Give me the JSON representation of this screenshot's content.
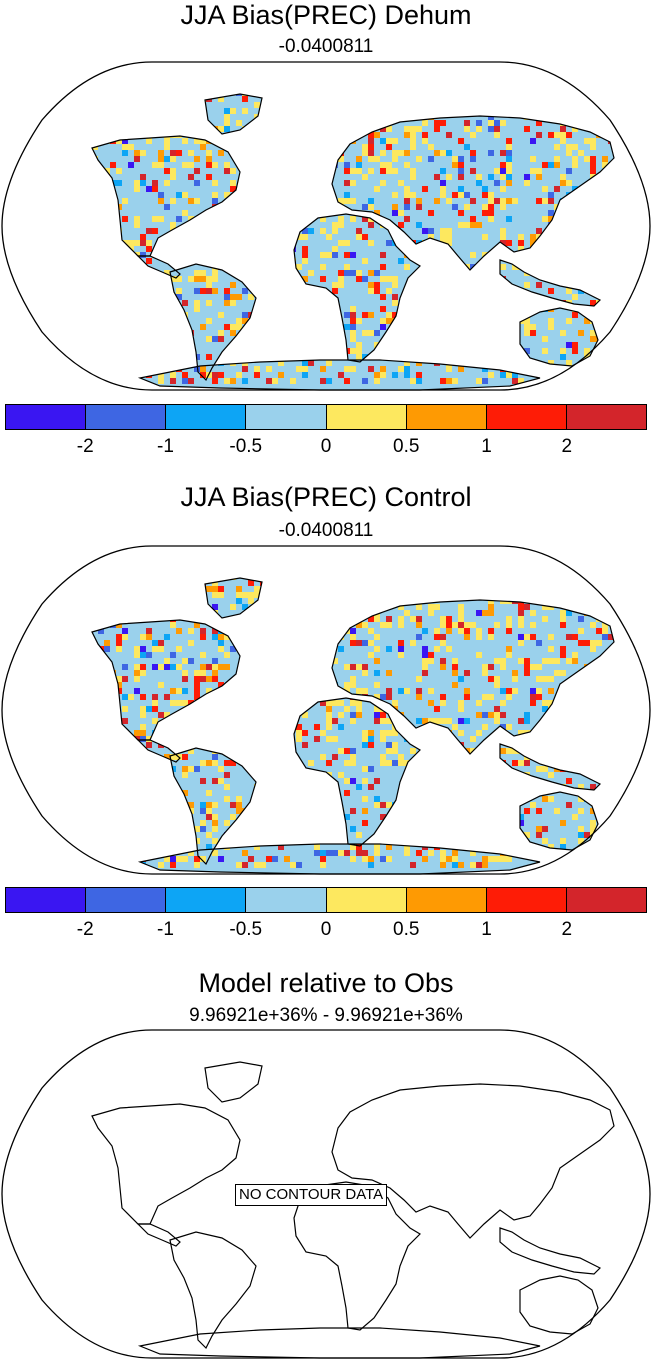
{
  "panels": [
    {
      "title": "JJA Bias(PREC) Dehum",
      "subtitle": "-0.0400811"
    },
    {
      "title": "JJA Bias(PREC) Control",
      "subtitle": "-0.0400811"
    },
    {
      "title": "Model relative to Obs",
      "subtitle": "9.96921e+36% - 9.96921e+36%",
      "message": "NO CONTOUR DATA"
    }
  ],
  "colorbar": {
    "colors": [
      "#3a16f2",
      "#3e66e3",
      "#0da5f5",
      "#9ad1ec",
      "#fde85f",
      "#fe9a03",
      "#fe1c06",
      "#d3252b"
    ],
    "labels": [
      "-2",
      "-1",
      "-0.5",
      "0",
      "0.5",
      "1",
      "2"
    ]
  }
}
